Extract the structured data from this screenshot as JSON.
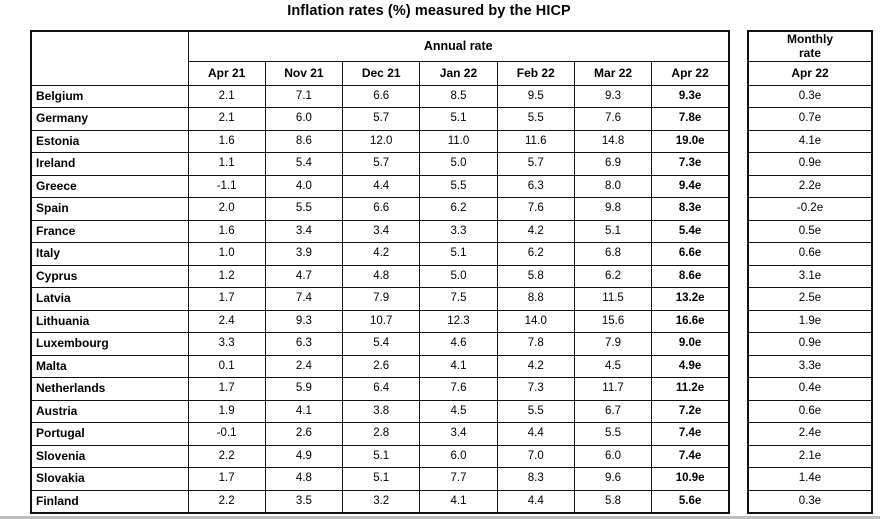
{
  "title": "Inflation rates (%) measured by the HICP",
  "table": {
    "annual_header": "Annual rate",
    "monthly_header": "Monthly\nrate",
    "annual_columns": [
      "Apr 21",
      "Nov 21",
      "Dec 21",
      "Jan 22",
      "Feb 22",
      "Mar 22",
      "Apr 22"
    ],
    "monthly_column": "Apr 22",
    "rows": [
      {
        "country": "Belgium",
        "annual": [
          "2.1",
          "7.1",
          "6.6",
          "8.5",
          "9.5",
          "9.3",
          "9.3e"
        ],
        "monthly": "0.3e"
      },
      {
        "country": "Germany",
        "annual": [
          "2.1",
          "6.0",
          "5.7",
          "5.1",
          "5.5",
          "7.6",
          "7.8e"
        ],
        "monthly": "0.7e"
      },
      {
        "country": "Estonia",
        "annual": [
          "1.6",
          "8.6",
          "12.0",
          "11.0",
          "11.6",
          "14.8",
          "19.0e"
        ],
        "monthly": "4.1e"
      },
      {
        "country": "Ireland",
        "annual": [
          "1.1",
          "5.4",
          "5.7",
          "5.0",
          "5.7",
          "6.9",
          "7.3e"
        ],
        "monthly": "0.9e"
      },
      {
        "country": "Greece",
        "annual": [
          "-1.1",
          "4.0",
          "4.4",
          "5.5",
          "6.3",
          "8.0",
          "9.4e"
        ],
        "monthly": "2.2e"
      },
      {
        "country": "Spain",
        "annual": [
          "2.0",
          "5.5",
          "6.6",
          "6.2",
          "7.6",
          "9.8",
          "8.3e"
        ],
        "monthly": "-0.2e"
      },
      {
        "country": "France",
        "annual": [
          "1.6",
          "3.4",
          "3.4",
          "3.3",
          "4.2",
          "5.1",
          "5.4e"
        ],
        "monthly": "0.5e"
      },
      {
        "country": "Italy",
        "annual": [
          "1.0",
          "3.9",
          "4.2",
          "5.1",
          "6.2",
          "6.8",
          "6.6e"
        ],
        "monthly": "0.6e"
      },
      {
        "country": "Cyprus",
        "annual": [
          "1.2",
          "4.7",
          "4.8",
          "5.0",
          "5.8",
          "6.2",
          "8.6e"
        ],
        "monthly": "3.1e"
      },
      {
        "country": "Latvia",
        "annual": [
          "1.7",
          "7.4",
          "7.9",
          "7.5",
          "8.8",
          "11.5",
          "13.2e"
        ],
        "monthly": "2.5e"
      },
      {
        "country": "Lithuania",
        "annual": [
          "2.4",
          "9.3",
          "10.7",
          "12.3",
          "14.0",
          "15.6",
          "16.6e"
        ],
        "monthly": "1.9e"
      },
      {
        "country": "Luxembourg",
        "annual": [
          "3.3",
          "6.3",
          "5.4",
          "4.6",
          "7.8",
          "7.9",
          "9.0e"
        ],
        "monthly": "0.9e"
      },
      {
        "country": "Malta",
        "annual": [
          "0.1",
          "2.4",
          "2.6",
          "4.1",
          "4.2",
          "4.5",
          "4.9e"
        ],
        "monthly": "3.3e"
      },
      {
        "country": "Netherlands",
        "annual": [
          "1.7",
          "5.9",
          "6.4",
          "7.6",
          "7.3",
          "11.7",
          "11.2e"
        ],
        "monthly": "0.4e"
      },
      {
        "country": "Austria",
        "annual": [
          "1.9",
          "4.1",
          "3.8",
          "4.5",
          "5.5",
          "6.7",
          "7.2e"
        ],
        "monthly": "0.6e"
      },
      {
        "country": "Portugal",
        "annual": [
          "-0.1",
          "2.6",
          "2.8",
          "3.4",
          "4.4",
          "5.5",
          "7.4e"
        ],
        "monthly": "2.4e"
      },
      {
        "country": "Slovenia",
        "annual": [
          "2.2",
          "4.9",
          "5.1",
          "6.0",
          "7.0",
          "6.0",
          "7.4e"
        ],
        "monthly": "2.1e"
      },
      {
        "country": "Slovakia",
        "annual": [
          "1.7",
          "4.8",
          "5.1",
          "7.7",
          "8.3",
          "9.6",
          "10.9e"
        ],
        "monthly": "1.4e"
      },
      {
        "country": "Finland",
        "annual": [
          "2.2",
          "3.5",
          "3.2",
          "4.1",
          "4.4",
          "5.8",
          "5.6e"
        ],
        "monthly": "0.3e"
      }
    ]
  }
}
